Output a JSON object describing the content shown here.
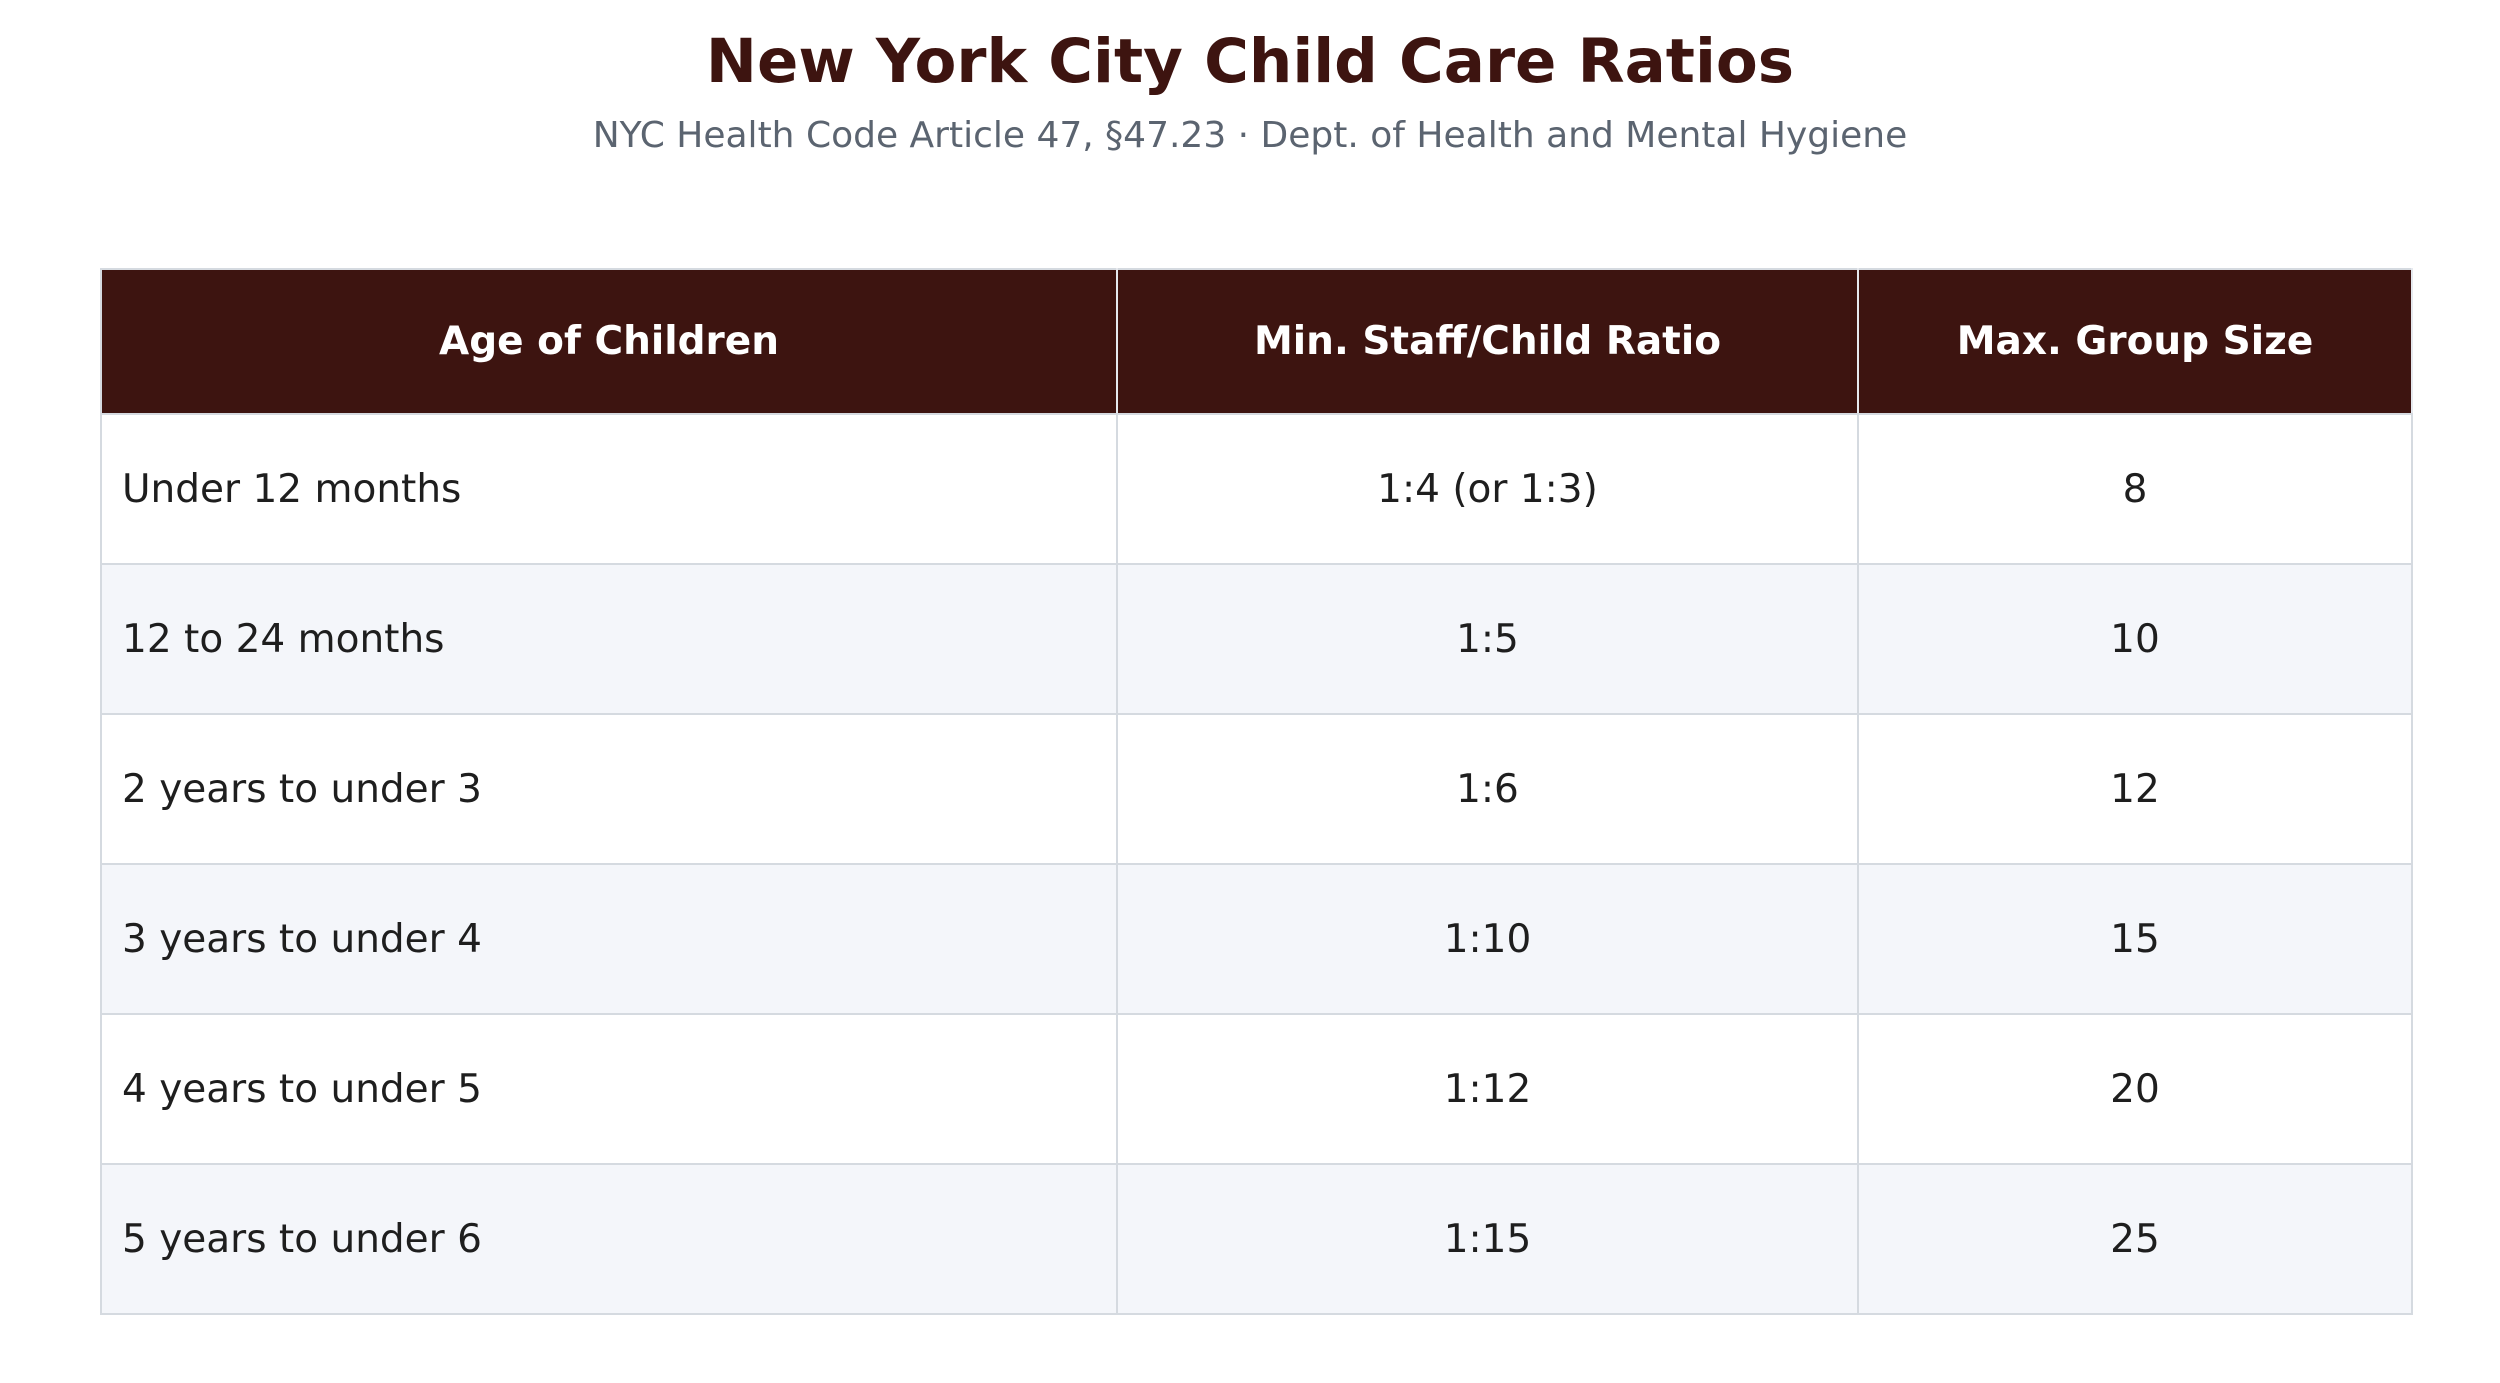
{
  "title": "New York City Child Care Ratios",
  "subtitle": "NYC Health Code Article 47, §47.23 · Dept. of Health and Mental Hygiene",
  "colors": {
    "header_bg": "#3d1410",
    "title_text": "#3d1410",
    "subtitle_text": "#5b6470",
    "row_alt_bg": "#f4f6fa",
    "border": "#d5dae0"
  },
  "table": {
    "headers": [
      "Age of Children",
      "Min. Staff/Child Ratio",
      "Max. Group Size"
    ],
    "rows": [
      [
        "Under 12 months",
        "1:4 (or 1:3)",
        "8"
      ],
      [
        "12 to 24 months",
        "1:5",
        "10"
      ],
      [
        "2 years to under 3",
        "1:6",
        "12"
      ],
      [
        "3 years to under 4",
        "1:10",
        "15"
      ],
      [
        "4 years to under 5",
        "1:12",
        "20"
      ],
      [
        "5 years to under 6",
        "1:15",
        "25"
      ]
    ]
  }
}
